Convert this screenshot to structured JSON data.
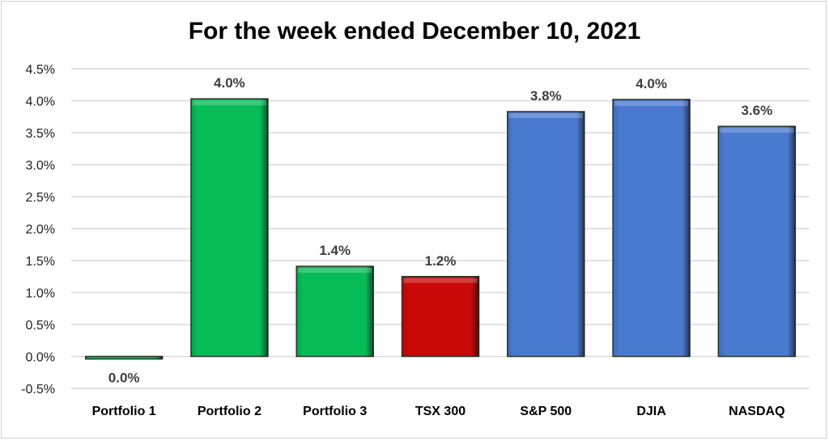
{
  "chart_data": {
    "type": "bar",
    "title": "For the week ended December 10, 2021",
    "xlabel": "",
    "ylabel": "",
    "ylim": [
      -0.5,
      4.5
    ],
    "yticks": [
      -0.5,
      0.0,
      0.5,
      1.0,
      1.5,
      2.0,
      2.5,
      3.0,
      3.5,
      4.0,
      4.5
    ],
    "ytick_labels": [
      "-0.5%",
      "0.0%",
      "0.5%",
      "1.0%",
      "1.5%",
      "2.0%",
      "2.5%",
      "3.0%",
      "3.5%",
      "4.0%",
      "4.5%"
    ],
    "grid": true,
    "categories": [
      "Portfolio 1",
      "Portfolio 2",
      "Portfolio 3",
      "TSX 300",
      "S&P 500",
      "DJIA",
      "NASDAQ"
    ],
    "values": [
      -0.04,
      4.03,
      1.41,
      1.25,
      3.83,
      4.02,
      3.6
    ],
    "data_labels": [
      "0.0%",
      "4.0%",
      "1.4%",
      "1.2%",
      "3.8%",
      "4.0%",
      "3.6%"
    ],
    "colors": [
      "#07bb58",
      "#07bb58",
      "#07bb58",
      "#c90808",
      "#4a7ad0",
      "#4a7ad0",
      "#4a7ad0"
    ]
  }
}
